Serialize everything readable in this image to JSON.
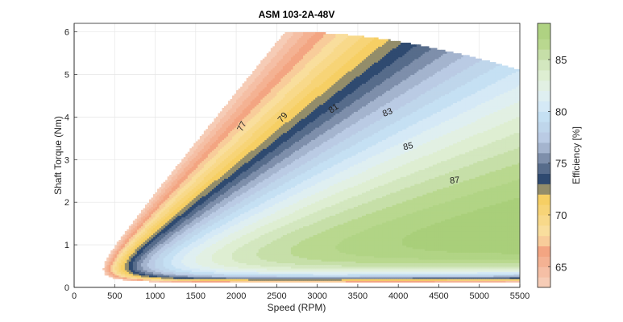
{
  "chart_data": {
    "type": "contour",
    "title": "ASM 103-2A-48V",
    "xlabel": "Speed (RPM)",
    "ylabel": "Shaft Torque (Nm)",
    "xlim": [
      0,
      5500
    ],
    "ylim": [
      0,
      6.2
    ],
    "xticks": [
      0,
      500,
      1000,
      1500,
      2000,
      2500,
      3000,
      3500,
      4000,
      4500,
      5000,
      5500
    ],
    "yticks": [
      0,
      1,
      2,
      3,
      4,
      5,
      6
    ],
    "grid": true,
    "colorbar": {
      "label": "Efficiency [%]",
      "range": [
        63,
        88.5
      ],
      "ticks": [
        65,
        70,
        75,
        80,
        85
      ]
    },
    "levels": [
      63,
      64,
      65,
      66,
      67,
      68,
      69,
      70,
      71,
      72,
      73,
      74,
      75,
      76,
      77,
      78,
      79,
      80,
      81,
      82,
      83,
      84,
      85,
      86,
      87
    ],
    "contour_labels": [
      {
        "text": "77",
        "x": 2100,
        "y": 3.75,
        "angle": -62
      },
      {
        "text": "79",
        "x": 2600,
        "y": 3.95,
        "angle": -50
      },
      {
        "text": "81",
        "x": 3220,
        "y": 4.15,
        "angle": -35
      },
      {
        "text": "83",
        "x": 3880,
        "y": 4.05,
        "angle": -22
      },
      {
        "text": "85",
        "x": 4130,
        "y": 3.25,
        "angle": -14
      },
      {
        "text": "87",
        "x": 4700,
        "y": 2.45,
        "angle": -6
      }
    ],
    "peak_efficiency_region": {
      "speed_rpm": 4700,
      "torque_nm": 1.8,
      "efficiency": 88
    }
  }
}
